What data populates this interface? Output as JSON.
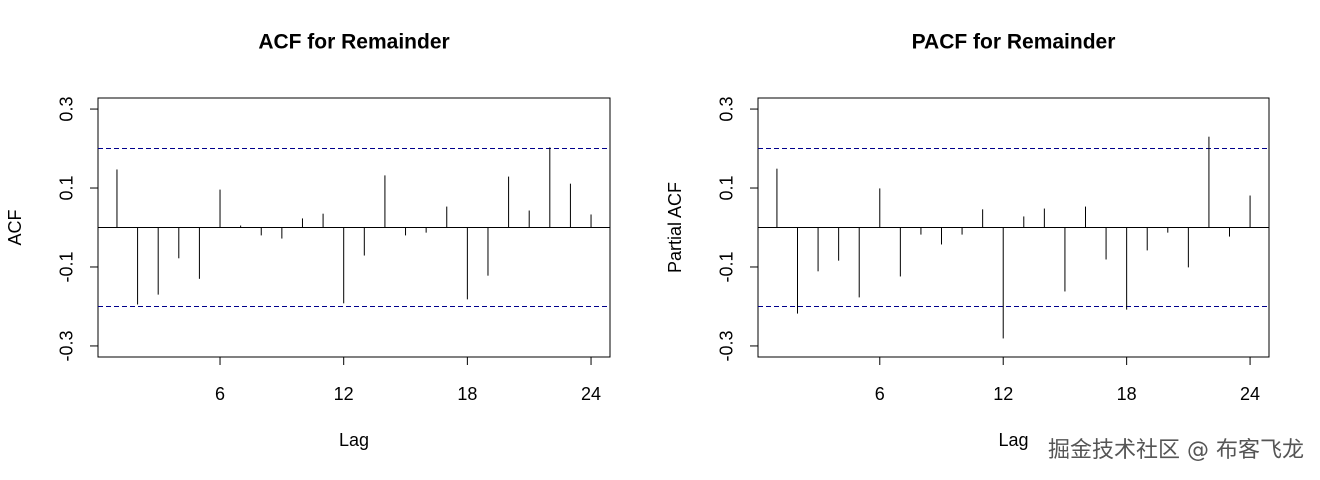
{
  "chart_data": [
    {
      "type": "stem",
      "title": "ACF for Remainder",
      "x_label": "Lag",
      "y_label": "ACF",
      "x": [
        1,
        2,
        3,
        4,
        5,
        6,
        7,
        8,
        9,
        10,
        11,
        12,
        13,
        14,
        15,
        16,
        17,
        18,
        19,
        20,
        21,
        22,
        23,
        24
      ],
      "values": [
        0.147,
        -0.195,
        -0.17,
        -0.078,
        -0.13,
        0.096,
        0.005,
        -0.02,
        -0.028,
        0.023,
        0.035,
        -0.192,
        -0.071,
        0.132,
        -0.02,
        -0.013,
        0.053,
        -0.182,
        -0.122,
        0.129,
        0.043,
        0.203,
        0.111,
        0.033
      ],
      "color": "#000000",
      "xlim": [
        0.08,
        24.92
      ],
      "ylim": [
        -0.328,
        0.328
      ],
      "xticks": [
        6,
        12,
        18,
        24
      ],
      "yticks": [
        -0.3,
        -0.1,
        0.1,
        0.3
      ],
      "ci_lines": [
        -0.2,
        0.2
      ],
      "ci_color": "#00008b"
    },
    {
      "type": "stem",
      "title": "PACF for Remainder",
      "x_label": "Lag",
      "y_label": "Partial ACF",
      "x": [
        1,
        2,
        3,
        4,
        5,
        6,
        7,
        8,
        9,
        10,
        11,
        12,
        13,
        14,
        15,
        16,
        17,
        18,
        19,
        20,
        21,
        22,
        23,
        24
      ],
      "values": [
        0.149,
        -0.218,
        -0.111,
        -0.084,
        -0.177,
        0.099,
        -0.124,
        -0.018,
        -0.043,
        -0.018,
        0.046,
        -0.281,
        0.028,
        0.048,
        -0.162,
        0.053,
        -0.081,
        -0.208,
        -0.058,
        -0.013,
        -0.101,
        0.23,
        -0.023,
        0.081
      ],
      "color": "#000000",
      "xlim": [
        0.08,
        24.92
      ],
      "ylim": [
        -0.328,
        0.328
      ],
      "xticks": [
        6,
        12,
        18,
        24
      ],
      "yticks": [
        -0.3,
        -0.1,
        0.1,
        0.3
      ],
      "ci_lines": [
        -0.2,
        0.2
      ],
      "ci_color": "#00008b"
    }
  ],
  "watermark": "掘金技术社区 @ 布客飞龙"
}
